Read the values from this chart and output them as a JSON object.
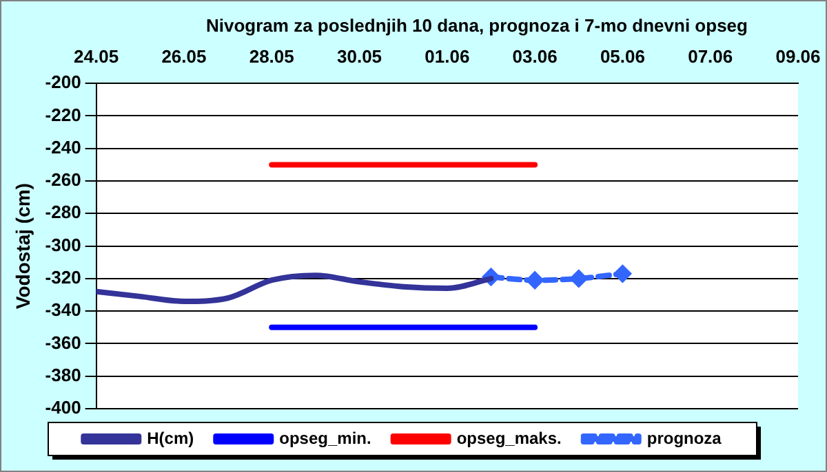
{
  "chart_data": {
    "type": "line",
    "title": "Nivogram za poslednjih 10 dana, prognoza i 7-mo dnevni opseg",
    "ylabel": "Vodostaj (cm)",
    "xlim": [
      "--05-24",
      "--06-09"
    ],
    "xticks": [
      {
        "value": "--05-24",
        "label": "24.05"
      },
      {
        "value": "--05-26",
        "label": "26.05"
      },
      {
        "value": "--05-28",
        "label": "28.05"
      },
      {
        "value": "--05-30",
        "label": "30.05"
      },
      {
        "value": "--06-01",
        "label": "01.06"
      },
      {
        "value": "--06-03",
        "label": "03.06"
      },
      {
        "value": "--06-05",
        "label": "05.06"
      },
      {
        "value": "--06-07",
        "label": "07.06"
      },
      {
        "value": "--06-09",
        "label": "09.06"
      }
    ],
    "ylim": [
      -400,
      -200
    ],
    "yticks": [
      -400,
      -380,
      -360,
      -340,
      -320,
      -300,
      -280,
      -260,
      -240,
      -220,
      -200
    ],
    "grid": "y",
    "legend": "bottom",
    "series": [
      {
        "name": "H(cm)",
        "color": "#333399",
        "x": [
          "--05-24",
          "--05-25",
          "--05-26",
          "--05-27",
          "--05-28",
          "--05-29",
          "--05-30",
          "--05-31",
          "--06-01",
          "--06-02"
        ],
        "values": [
          -328,
          -331,
          -334,
          -332,
          -321,
          -318,
          -322,
          -325,
          -326,
          -320
        ],
        "marker": "none",
        "line_style": "solid"
      },
      {
        "name": "opseg_min.",
        "color": "#0000ff",
        "x": [
          "--05-28",
          "--06-03"
        ],
        "values": [
          -350,
          -350
        ],
        "marker": "none",
        "line_style": "solid"
      },
      {
        "name": "opseg_maks.",
        "color": "#ff0000",
        "x": [
          "--05-28",
          "--06-03"
        ],
        "values": [
          -250,
          -250
        ],
        "marker": "none",
        "line_style": "solid"
      },
      {
        "name": "prognoza",
        "color": "#3366ff",
        "x": [
          "--06-02",
          "--06-03",
          "--06-04",
          "--06-05"
        ],
        "values": [
          -319,
          -321,
          -320,
          -317
        ],
        "marker": "diamond",
        "line_style": "dashed"
      }
    ]
  }
}
